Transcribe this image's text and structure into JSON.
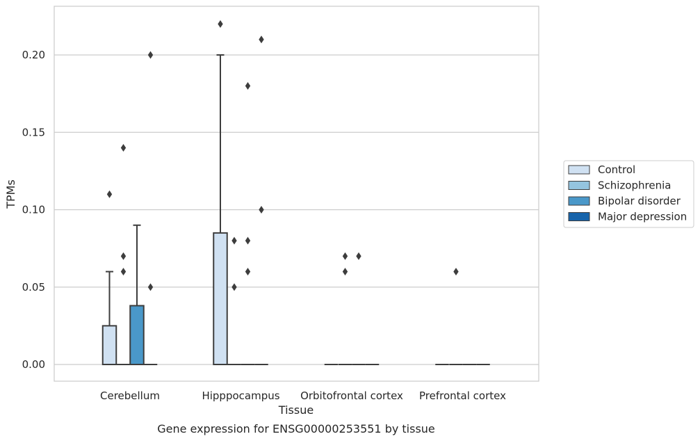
{
  "chart_data": {
    "type": "box",
    "title": "",
    "caption": "Gene expression for ENSG00000253551 by tissue",
    "xlabel": "Tissue",
    "ylabel": "TPMs",
    "ylim": [
      -0.011,
      0.231
    ],
    "yticks": [
      "0.00",
      "0.05",
      "0.10",
      "0.15",
      "0.20"
    ],
    "ytick_values": [
      0.0,
      0.05,
      0.1,
      0.15,
      0.2
    ],
    "categories": [
      "Cerebellum",
      "Hipppocampus",
      "Orbitofrontal cortex",
      "Prefrontal cortex"
    ],
    "grid": "horizontal",
    "legend_position": "right",
    "series": [
      {
        "name": "Control",
        "color": "#d0e1f2",
        "boxes": [
          {
            "q1": 0.0,
            "median": 0.0,
            "q3": 0.025,
            "whisker_low": 0.0,
            "whisker_high": 0.06,
            "outliers": [
              0.11
            ]
          },
          {
            "q1": 0.0,
            "median": 0.0,
            "q3": 0.085,
            "whisker_low": 0.0,
            "whisker_high": 0.2,
            "outliers": [
              0.22
            ]
          },
          {
            "q1": 0.0,
            "median": 0.0,
            "q3": 0.0,
            "whisker_low": 0.0,
            "whisker_high": 0.0,
            "outliers": []
          },
          {
            "q1": 0.0,
            "median": 0.0,
            "q3": 0.0,
            "whisker_low": 0.0,
            "whisker_high": 0.0,
            "outliers": []
          }
        ]
      },
      {
        "name": "Schizophrenia",
        "color": "#94c4df",
        "boxes": [
          {
            "q1": 0.0,
            "median": 0.0,
            "q3": 0.0,
            "whisker_low": 0.0,
            "whisker_high": 0.0,
            "outliers": [
              0.06,
              0.07,
              0.14
            ]
          },
          {
            "q1": 0.0,
            "median": 0.0,
            "q3": 0.0,
            "whisker_low": 0.0,
            "whisker_high": 0.0,
            "outliers": [
              0.05,
              0.08
            ]
          },
          {
            "q1": 0.0,
            "median": 0.0,
            "q3": 0.0,
            "whisker_low": 0.0,
            "whisker_high": 0.0,
            "outliers": [
              0.06,
              0.07
            ]
          },
          {
            "q1": 0.0,
            "median": 0.0,
            "q3": 0.0,
            "whisker_low": 0.0,
            "whisker_high": 0.0,
            "outliers": [
              0.06
            ]
          }
        ]
      },
      {
        "name": "Bipolar disorder",
        "color": "#4a98c9",
        "boxes": [
          {
            "q1": 0.0,
            "median": 0.0,
            "q3": 0.038,
            "whisker_low": 0.0,
            "whisker_high": 0.09,
            "outliers": []
          },
          {
            "q1": 0.0,
            "median": 0.0,
            "q3": 0.0,
            "whisker_low": 0.0,
            "whisker_high": 0.0,
            "outliers": [
              0.06,
              0.08,
              0.18
            ]
          },
          {
            "q1": 0.0,
            "median": 0.0,
            "q3": 0.0,
            "whisker_low": 0.0,
            "whisker_high": 0.0,
            "outliers": [
              0.07
            ]
          },
          {
            "q1": 0.0,
            "median": 0.0,
            "q3": 0.0,
            "whisker_low": 0.0,
            "whisker_high": 0.0,
            "outliers": []
          }
        ]
      },
      {
        "name": "Major depression",
        "color": "#1764ab",
        "boxes": [
          {
            "q1": 0.0,
            "median": 0.0,
            "q3": 0.0,
            "whisker_low": 0.0,
            "whisker_high": 0.0,
            "outliers": [
              0.05,
              0.2
            ]
          },
          {
            "q1": 0.0,
            "median": 0.0,
            "q3": 0.0,
            "whisker_low": 0.0,
            "whisker_high": 0.0,
            "outliers": [
              0.1,
              0.21
            ]
          },
          {
            "q1": 0.0,
            "median": 0.0,
            "q3": 0.0,
            "whisker_low": 0.0,
            "whisker_high": 0.0,
            "outliers": []
          },
          {
            "q1": 0.0,
            "median": 0.0,
            "q3": 0.0,
            "whisker_low": 0.0,
            "whisker_high": 0.0,
            "outliers": []
          }
        ]
      }
    ]
  }
}
